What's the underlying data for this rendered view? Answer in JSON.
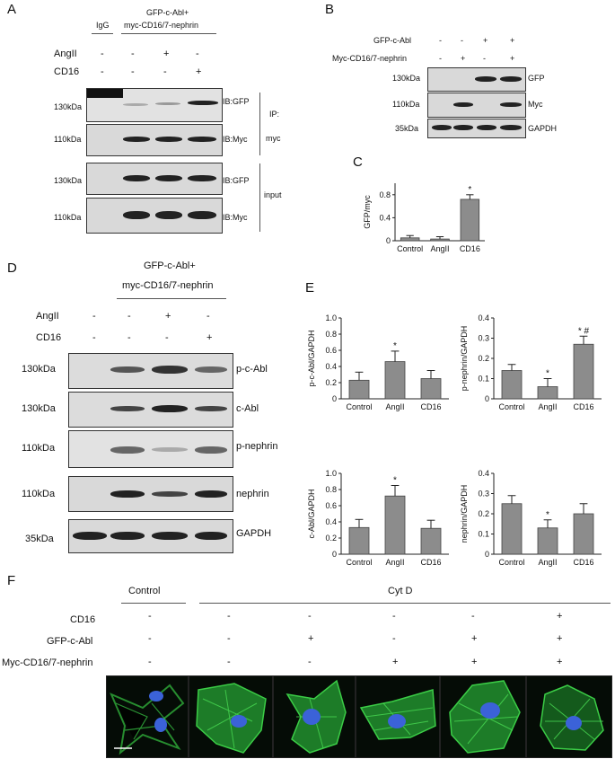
{
  "panel_A": {
    "letter": "A",
    "igg": "IgG",
    "header": [
      "GFP-c-Abl+",
      "myc-CD16/7-nephrin"
    ],
    "rows": [
      {
        "label": "AngII",
        "signs": [
          "-",
          "-",
          "+",
          "-"
        ]
      },
      {
        "label": "CD16",
        "signs": [
          "-",
          "-",
          "-",
          "+"
        ]
      }
    ],
    "blots": [
      {
        "mw": "130kDa",
        "ib": "IB:GFP"
      },
      {
        "mw": "110kDa",
        "ib": "IB:Myc"
      },
      {
        "mw": "130kDa",
        "ib": "IB:GFP"
      },
      {
        "mw": "110kDa",
        "ib": "IB:Myc"
      }
    ],
    "ip_label": [
      "IP:",
      "myc"
    ],
    "input_label": "input"
  },
  "panel_B": {
    "letter": "B",
    "rows": [
      {
        "label": "GFP-c-Abl",
        "signs": [
          "-",
          "-",
          "+",
          "+"
        ]
      },
      {
        "label": "Myc-CD16/7-nephrin",
        "signs": [
          "-",
          "+",
          "-",
          "+"
        ]
      }
    ],
    "blots": [
      {
        "mw": "130kDa",
        "ib": "GFP"
      },
      {
        "mw": "110kDa",
        "ib": "Myc"
      },
      {
        "mw": "35kDa",
        "ib": "GAPDH"
      }
    ]
  },
  "panel_C": {
    "letter": "C",
    "chart_data": {
      "type": "bar",
      "categories": [
        "Control",
        "AngII",
        "CD16"
      ],
      "values": [
        0.05,
        0.03,
        0.72
      ],
      "errors": [
        0.04,
        0.04,
        0.08
      ],
      "ylabel": "GFP/myc",
      "ylim": [
        0,
        1.0
      ],
      "yticks": [
        "0",
        "0.4",
        "0.8"
      ],
      "annotations": [
        "",
        "",
        "*"
      ]
    }
  },
  "panel_D": {
    "letter": "D",
    "header": [
      "GFP-c-Abl+",
      "myc-CD16/7-nephrin"
    ],
    "rows": [
      {
        "label": "AngII",
        "signs": [
          "-",
          "-",
          "+",
          "-"
        ]
      },
      {
        "label": "CD16",
        "signs": [
          "-",
          "-",
          "-",
          "+"
        ]
      }
    ],
    "blots": [
      {
        "mw": "130kDa",
        "ib": "p-c-Abl"
      },
      {
        "mw": "130kDa",
        "ib": "c-Abl"
      },
      {
        "mw": "110kDa",
        "ib": "p-nephrin"
      },
      {
        "mw": "110kDa",
        "ib": "nephrin"
      },
      {
        "mw": "35kDa",
        "ib": "GAPDH"
      }
    ]
  },
  "panel_E": {
    "letter": "E",
    "chart_data": [
      {
        "type": "bar",
        "categories": [
          "Control",
          "AngII",
          "CD16"
        ],
        "values": [
          0.23,
          0.46,
          0.25
        ],
        "errors": [
          0.1,
          0.13,
          0.1
        ],
        "ylabel": "p-c-Abl/GAPDH",
        "ylim": [
          0,
          1.0
        ],
        "yticks": [
          "0",
          "0.2",
          "0.4",
          "0.6",
          "0.8",
          "1.0"
        ],
        "annotations": [
          "",
          "*",
          ""
        ]
      },
      {
        "type": "bar",
        "categories": [
          "Control",
          "AngII",
          "CD16"
        ],
        "values": [
          0.14,
          0.06,
          0.27
        ],
        "errors": [
          0.03,
          0.04,
          0.04
        ],
        "ylabel": "p-nephrin/GAPDH",
        "ylim": [
          0,
          0.4
        ],
        "yticks": [
          "0",
          "0.1",
          "0.2",
          "0.3",
          "0.4"
        ],
        "annotations": [
          "",
          "*",
          "* #"
        ]
      },
      {
        "type": "bar",
        "categories": [
          "Control",
          "AngII",
          "CD16"
        ],
        "values": [
          0.33,
          0.72,
          0.32
        ],
        "errors": [
          0.1,
          0.13,
          0.1
        ],
        "ylabel": "c-Abl/GAPDH",
        "ylim": [
          0,
          1.0
        ],
        "yticks": [
          "0",
          "0.2",
          "0.4",
          "0.6",
          "0.8",
          "1.0"
        ],
        "annotations": [
          "",
          "*",
          ""
        ]
      },
      {
        "type": "bar",
        "categories": [
          "Control",
          "AngII",
          "CD16"
        ],
        "values": [
          0.25,
          0.13,
          0.2
        ],
        "errors": [
          0.04,
          0.04,
          0.05
        ],
        "ylabel": "nephrin/GAPDH",
        "ylim": [
          0,
          0.4
        ],
        "yticks": [
          "0",
          "0.1",
          "0.2",
          "0.3",
          "0.4"
        ],
        "annotations": [
          "",
          "*",
          ""
        ]
      }
    ]
  },
  "panel_F": {
    "letter": "F",
    "control": "Control",
    "cytd": "Cyt D",
    "rows": [
      {
        "label": "CD16",
        "signs": [
          "-",
          "-",
          "-",
          "-",
          "-",
          "+"
        ]
      },
      {
        "label": "GFP-c-Abl",
        "signs": [
          "-",
          "-",
          "+",
          "-",
          "+",
          "+"
        ]
      },
      {
        "label": "Myc-CD16/7-nephrin",
        "signs": [
          "-",
          "-",
          "-",
          "+",
          "+",
          "+"
        ]
      }
    ]
  }
}
